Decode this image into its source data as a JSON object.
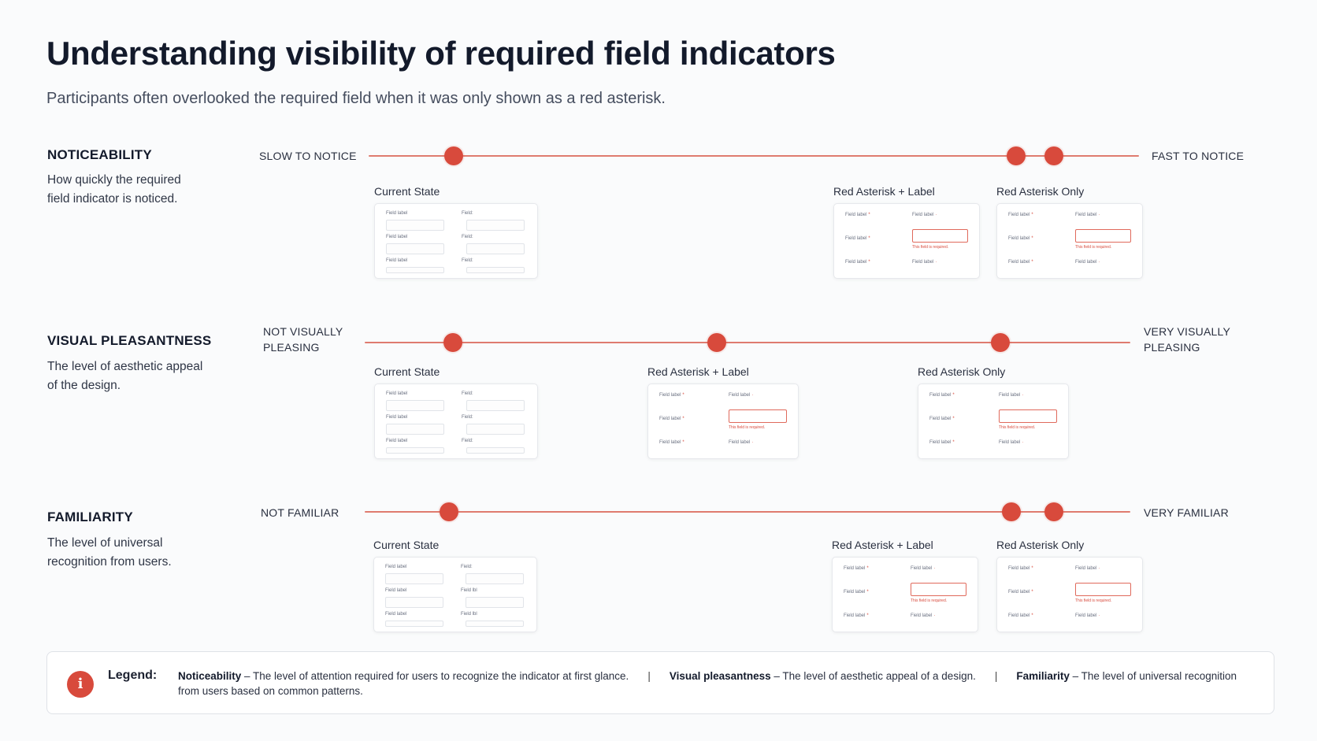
{
  "header": {
    "title": "Understanding visibility of required field indicators",
    "subtitle": "Participants often overlooked the required field when it was only shown as a red asterisk."
  },
  "colors": {
    "accent": "#d84a3c",
    "track": "#df7b6f",
    "title": "#131a2b",
    "background": "#fafbfc"
  },
  "sections": [
    {
      "title": "NOTICEABILITY",
      "description": "How quickly the required field indicator is noticed.",
      "left_label": "SLOW TO NOTICE",
      "right_label": "FAST TO NOTICE",
      "positions": [
        0.11,
        0.84,
        0.89
      ],
      "mockups": [
        {
          "title": "Current State",
          "variant": "current",
          "left_labels": [
            "Field label",
            "Field label",
            "Field label"
          ],
          "right_labels": [
            "Field:",
            "Field:",
            "Field:"
          ]
        },
        {
          "title": "Red Asterisk + Label",
          "variant": "asterisk-label",
          "left_labels": [
            "Field label",
            "Field label",
            "Field label"
          ],
          "right_labels": [
            "Field label",
            "",
            "Field label"
          ],
          "error_text": "This field is required."
        },
        {
          "title": "Red Asterisk Only",
          "variant": "asterisk-only",
          "left_labels": [
            "Field label",
            "Field label",
            "Field label"
          ],
          "right_labels": [
            "Field label",
            "",
            "Field label"
          ],
          "error_text": "This field is required."
        }
      ]
    },
    {
      "title": "VISUAL PLEASANTNESS",
      "description": "The level of aesthetic appeal of the design.",
      "left_label": "NOT VISUALLY PLEASING",
      "right_label": "VERY VISUALLY PLEASING",
      "positions": [
        0.115,
        0.46,
        0.83
      ],
      "mockups": [
        {
          "title": "Current State",
          "variant": "current",
          "left_labels": [
            "Field label",
            "Field label",
            "Field label"
          ],
          "right_labels": [
            "Field:",
            "Field:",
            "Field:"
          ]
        },
        {
          "title": "Red Asterisk + Label",
          "variant": "asterisk-label",
          "left_labels": [
            "Field label",
            "Field label",
            "Field label"
          ],
          "right_labels": [
            "Field label",
            "",
            "Field label"
          ],
          "error_text": "This field is required."
        },
        {
          "title": "Red Asterisk Only",
          "variant": "asterisk-only",
          "left_labels": [
            "Field label",
            "Field label",
            "Field label"
          ],
          "right_labels": [
            "Field label",
            "",
            "Field label"
          ],
          "error_text": "This field is required."
        }
      ]
    },
    {
      "title": "FAMILIARITY",
      "description": "The level of universal recognition from users.",
      "left_label": "NOT FAMILIAR",
      "right_label": "VERY FAMILIAR",
      "positions": [
        0.11,
        0.845,
        0.9
      ],
      "mockups": [
        {
          "title": "Current State",
          "variant": "current",
          "left_labels": [
            "Field label",
            "Field label",
            "Field label"
          ],
          "right_labels": [
            "Field:",
            "Field lbl",
            "Field lbl"
          ]
        },
        {
          "title": "Red Asterisk + Label",
          "variant": "asterisk-label",
          "left_labels": [
            "Field label",
            "Field label",
            "Field label"
          ],
          "right_labels": [
            "Field label",
            "",
            "Field label"
          ],
          "error_text": "This field is required."
        },
        {
          "title": "Red Asterisk Only",
          "variant": "asterisk-only",
          "left_labels": [
            "Field label",
            "Field label",
            "Field label"
          ],
          "right_labels": [
            "Field label",
            "",
            "Field label"
          ],
          "error_text": "This field is required."
        }
      ]
    }
  ],
  "legend": {
    "icon": "info-icon",
    "icon_glyph": "i",
    "label": "Legend:",
    "items": [
      {
        "term": "Noticeability",
        "text": " – The level of attention required for users to recognize the indicator at first glance."
      },
      {
        "term": "Visual pleasantness",
        "text": " – The level of aesthetic appeal of a design."
      },
      {
        "term": "Familiarity",
        "text": " – The level of universal recognition from users based on common patterns."
      }
    ],
    "separator": "|"
  }
}
